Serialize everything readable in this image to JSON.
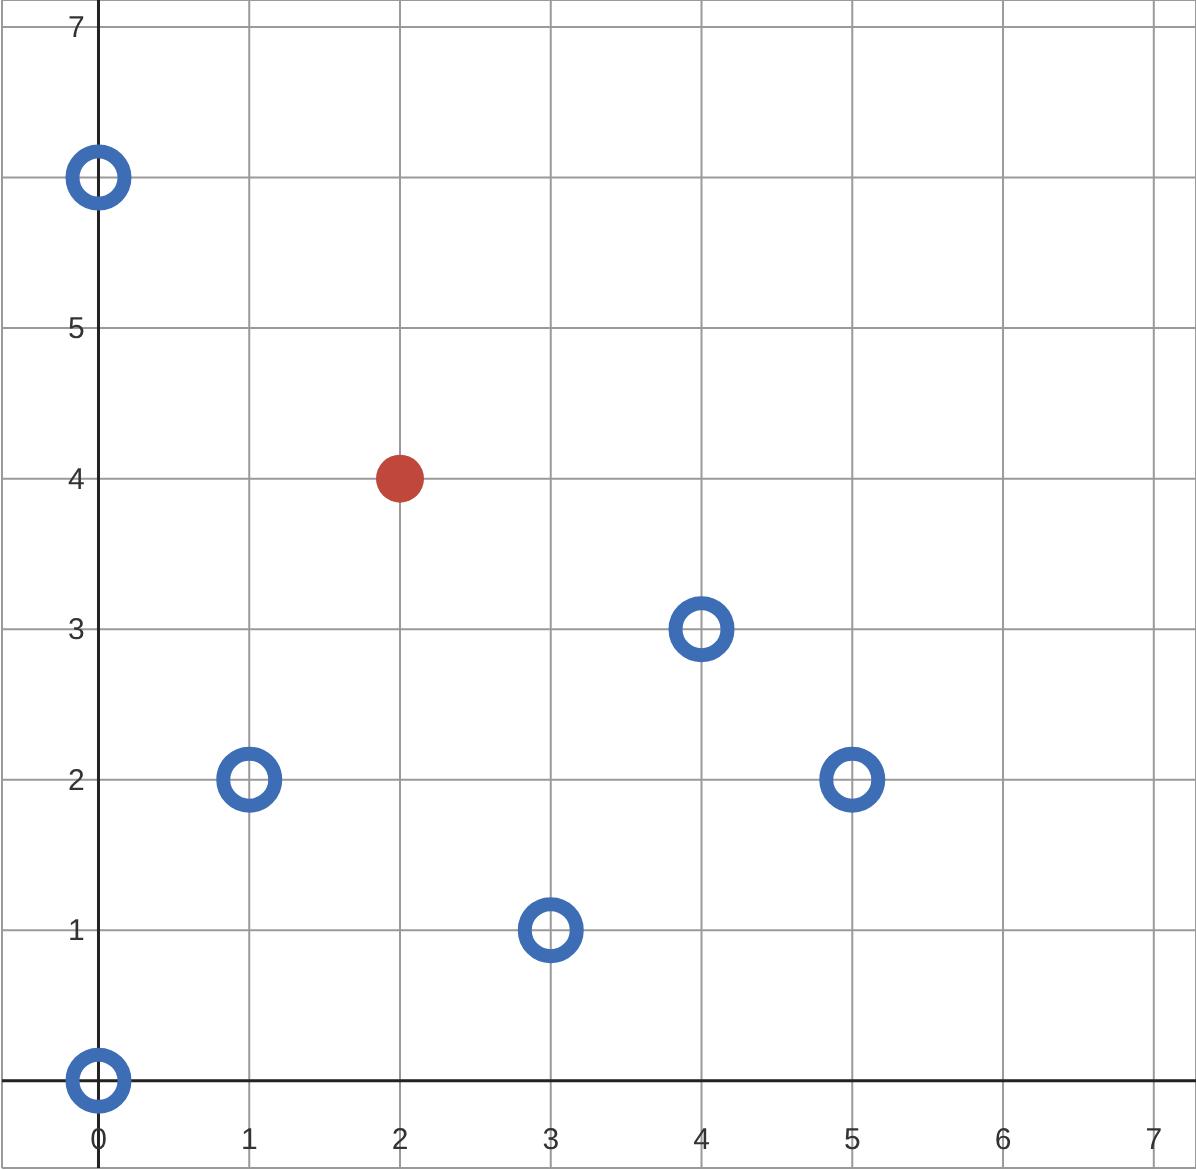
{
  "chart_data": {
    "type": "scatter",
    "xlim": [
      -0.64,
      7.28
    ],
    "ylim": [
      -0.58,
      7.18
    ],
    "xticks": [
      0,
      1,
      2,
      3,
      4,
      5,
      6,
      7
    ],
    "yticks": [
      {
        "value": 0,
        "label": null
      },
      1,
      2,
      3,
      4,
      5,
      {
        "value": 6,
        "label": null
      },
      7
    ],
    "grid": true,
    "marker": "circle",
    "series": [
      {
        "color": "#3d6db5",
        "x": [
          0,
          0,
          1,
          3,
          4,
          5
        ],
        "values": [
          0,
          6,
          2,
          1,
          3,
          2
        ]
      },
      {
        "color": "#c0473b",
        "x": [
          2
        ],
        "values": [
          4
        ]
      }
    ]
  }
}
